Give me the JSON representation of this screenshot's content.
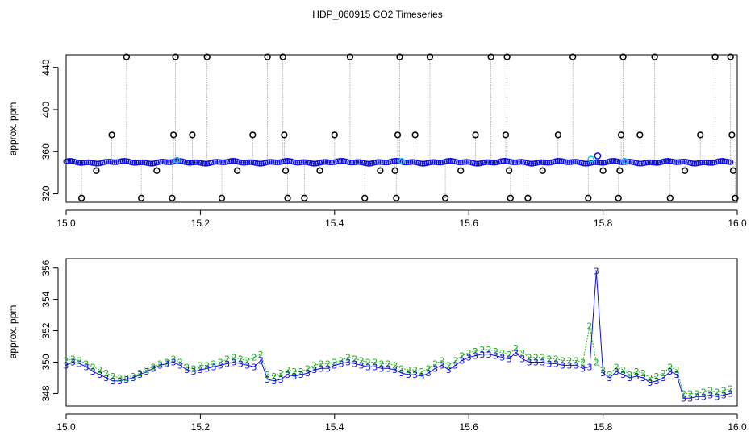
{
  "title": "HDP_060915  CO2 Timeseries",
  "colors": {
    "black": "#000000",
    "gray": "#9a9a9a",
    "blue": "#1010dd",
    "cyan": "#22c8d8",
    "green": "#22bb22"
  },
  "chart_data": [
    {
      "type": "scatter",
      "ylabel": "approx. ppm",
      "xlim": [
        15.0,
        16.0
      ],
      "ylim": [
        312,
        452
      ],
      "x_ticks": [
        "15.0",
        "15.2",
        "15.4",
        "15.6",
        "15.8",
        "16.0"
      ],
      "y_ticks": [
        "320",
        "360",
        "400",
        "440"
      ],
      "baseline": 350,
      "series": [
        {
          "marker": "black-open-circle",
          "points": [
            [
              15.023,
              316
            ],
            [
              15.045,
              342
            ],
            [
              15.068,
              376
            ],
            [
              15.09,
              450
            ],
            [
              15.112,
              316
            ],
            [
              15.135,
              342
            ],
            [
              15.158,
              316
            ],
            [
              15.16,
              376
            ],
            [
              15.163,
              450
            ],
            [
              15.188,
              376
            ],
            [
              15.21,
              450
            ],
            [
              15.232,
              316
            ],
            [
              15.255,
              342
            ],
            [
              15.278,
              376
            ],
            [
              15.3,
              450
            ],
            [
              15.323,
              450
            ],
            [
              15.325,
              376
            ],
            [
              15.327,
              342
            ],
            [
              15.33,
              316
            ],
            [
              15.355,
              316
            ],
            [
              15.378,
              342
            ],
            [
              15.4,
              376
            ],
            [
              15.423,
              450
            ],
            [
              15.445,
              316
            ],
            [
              15.468,
              342
            ],
            [
              15.49,
              342
            ],
            [
              15.492,
              316
            ],
            [
              15.494,
              376
            ],
            [
              15.497,
              450
            ],
            [
              15.52,
              376
            ],
            [
              15.542,
              450
            ],
            [
              15.565,
              316
            ],
            [
              15.588,
              342
            ],
            [
              15.61,
              376
            ],
            [
              15.633,
              450
            ],
            [
              15.655,
              376
            ],
            [
              15.657,
              450
            ],
            [
              15.66,
              342
            ],
            [
              15.662,
              316
            ],
            [
              15.688,
              316
            ],
            [
              15.71,
              342
            ],
            [
              15.733,
              376
            ],
            [
              15.755,
              450
            ],
            [
              15.778,
              316
            ],
            [
              15.8,
              342
            ],
            [
              15.823,
              316
            ],
            [
              15.825,
              342
            ],
            [
              15.827,
              376
            ],
            [
              15.83,
              450
            ],
            [
              15.855,
              376
            ],
            [
              15.877,
              450
            ],
            [
              15.9,
              316
            ],
            [
              15.922,
              342
            ],
            [
              15.945,
              376
            ],
            [
              15.967,
              450
            ],
            [
              15.99,
              450
            ],
            [
              15.992,
              376
            ],
            [
              15.994,
              342
            ],
            [
              15.997,
              316
            ]
          ]
        },
        {
          "marker": "cyan-open-circle",
          "points": [
            [
              15.165,
              352
            ],
            [
              15.5,
              351
            ],
            [
              15.782,
              353
            ],
            [
              15.832,
              351
            ]
          ]
        },
        {
          "marker": "blue-open-circle",
          "points": [
            [
              15.792,
              356
            ]
          ]
        }
      ]
    },
    {
      "type": "line",
      "ylabel": "approx. ppm",
      "xlim": [
        15.0,
        16.0
      ],
      "ylim": [
        347.2,
        356.6
      ],
      "x_ticks": [
        "15.0",
        "15.2",
        "15.4",
        "15.6",
        "15.8",
        "16.0"
      ],
      "y_ticks": [
        "348",
        "350",
        "352",
        "354",
        "356"
      ],
      "series": [
        {
          "marker": "2",
          "color": "green"
        },
        {
          "marker": "3",
          "color": "blue"
        }
      ],
      "x": [
        15.0,
        15.01,
        15.02,
        15.03,
        15.04,
        15.05,
        15.06,
        15.07,
        15.08,
        15.09,
        15.1,
        15.11,
        15.12,
        15.13,
        15.14,
        15.15,
        15.16,
        15.17,
        15.18,
        15.19,
        15.2,
        15.21,
        15.22,
        15.23,
        15.24,
        15.25,
        15.26,
        15.27,
        15.28,
        15.29,
        15.3,
        15.31,
        15.32,
        15.33,
        15.34,
        15.35,
        15.36,
        15.37,
        15.38,
        15.39,
        15.4,
        15.41,
        15.42,
        15.43,
        15.44,
        15.45,
        15.46,
        15.47,
        15.48,
        15.49,
        15.5,
        15.51,
        15.52,
        15.53,
        15.54,
        15.55,
        15.56,
        15.57,
        15.58,
        15.59,
        15.6,
        15.61,
        15.62,
        15.63,
        15.64,
        15.65,
        15.66,
        15.67,
        15.68,
        15.69,
        15.7,
        15.71,
        15.72,
        15.73,
        15.74,
        15.75,
        15.76,
        15.77,
        15.78,
        15.79,
        15.8,
        15.81,
        15.82,
        15.83,
        15.84,
        15.85,
        15.86,
        15.87,
        15.88,
        15.89,
        15.9,
        15.91,
        15.92,
        15.93,
        15.94,
        15.95,
        15.96,
        15.97,
        15.98,
        15.99
      ],
      "green": [
        350.1,
        350.2,
        350.1,
        349.9,
        349.7,
        349.5,
        349.3,
        349.1,
        349.0,
        349.0,
        349.1,
        349.3,
        349.5,
        349.7,
        349.9,
        350.0,
        350.2,
        350.0,
        349.7,
        349.6,
        349.8,
        349.8,
        349.9,
        350.0,
        350.2,
        350.3,
        350.2,
        350.1,
        350.3,
        350.5,
        349.2,
        349.1,
        349.3,
        349.5,
        349.4,
        349.4,
        349.6,
        349.8,
        349.9,
        349.9,
        350.0,
        350.1,
        350.3,
        350.2,
        350.1,
        350.0,
        350.0,
        349.9,
        349.9,
        349.8,
        349.6,
        349.5,
        349.5,
        349.4,
        349.6,
        349.9,
        350.1,
        349.8,
        350.1,
        350.4,
        350.6,
        350.7,
        350.8,
        350.8,
        350.7,
        350.6,
        350.5,
        350.9,
        350.6,
        350.3,
        350.3,
        350.3,
        350.2,
        350.2,
        350.1,
        350.1,
        350.1,
        350.0,
        352.3,
        350.0,
        349.5,
        349.2,
        349.7,
        349.5,
        349.2,
        349.4,
        349.3,
        349.0,
        349.1,
        349.3,
        349.7,
        349.5,
        348.0,
        348.0,
        348.0,
        348.1,
        348.2,
        348.1,
        348.2,
        348.3
      ],
      "blue": [
        349.8,
        350.0,
        349.9,
        349.7,
        349.4,
        349.2,
        349.0,
        348.8,
        348.8,
        348.9,
        349.0,
        349.2,
        349.4,
        349.6,
        349.8,
        349.9,
        350.0,
        349.8,
        349.5,
        349.4,
        349.5,
        349.6,
        349.7,
        349.8,
        349.9,
        350.0,
        349.9,
        349.8,
        349.7,
        350.1,
        348.9,
        348.8,
        348.9,
        349.2,
        349.1,
        349.2,
        349.3,
        349.5,
        349.6,
        349.6,
        349.8,
        349.9,
        350.0,
        349.9,
        349.8,
        349.7,
        349.7,
        349.6,
        349.6,
        349.5,
        349.3,
        349.2,
        349.2,
        349.1,
        349.3,
        349.6,
        349.8,
        349.5,
        349.8,
        350.1,
        350.3,
        350.4,
        350.5,
        350.5,
        350.4,
        350.3,
        350.2,
        350.6,
        350.2,
        350.0,
        350.0,
        350.0,
        349.9,
        349.9,
        349.8,
        349.8,
        349.8,
        349.6,
        349.7,
        355.8,
        349.3,
        349.0,
        349.4,
        349.2,
        349.0,
        349.1,
        349.0,
        348.7,
        348.8,
        349.0,
        349.4,
        349.2,
        347.7,
        347.7,
        347.8,
        347.8,
        347.9,
        347.8,
        347.9,
        348.0
      ]
    }
  ]
}
